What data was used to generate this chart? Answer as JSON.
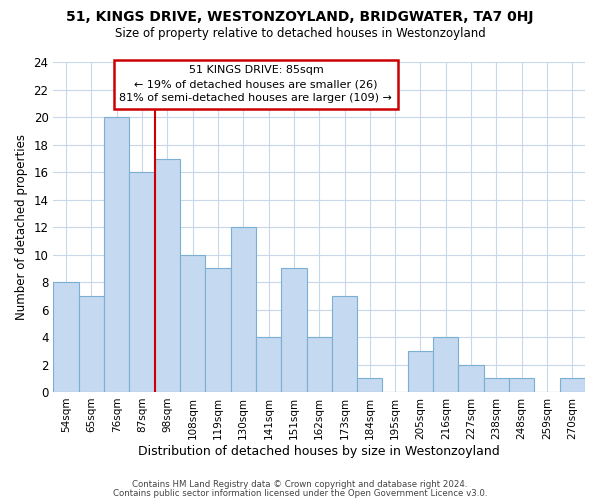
{
  "title": "51, KINGS DRIVE, WESTONZOYLAND, BRIDGWATER, TA7 0HJ",
  "subtitle": "Size of property relative to detached houses in Westonzoyland",
  "xlabel": "Distribution of detached houses by size in Westonzoyland",
  "ylabel": "Number of detached properties",
  "bin_labels": [
    "54sqm",
    "65sqm",
    "76sqm",
    "87sqm",
    "98sqm",
    "108sqm",
    "119sqm",
    "130sqm",
    "141sqm",
    "151sqm",
    "162sqm",
    "173sqm",
    "184sqm",
    "195sqm",
    "205sqm",
    "216sqm",
    "227sqm",
    "238sqm",
    "248sqm",
    "259sqm",
    "270sqm"
  ],
  "bar_heights": [
    8,
    7,
    20,
    16,
    17,
    10,
    9,
    12,
    4,
    9,
    4,
    7,
    1,
    0,
    3,
    4,
    2,
    1,
    1,
    0,
    1
  ],
  "bar_color": "#c5d9f0",
  "bar_edge_color": "#7bafd4",
  "reference_line_index": 3,
  "reference_line_color": "#cc0000",
  "ylim": [
    0,
    24
  ],
  "yticks": [
    0,
    2,
    4,
    6,
    8,
    10,
    12,
    14,
    16,
    18,
    20,
    22,
    24
  ],
  "annotation_title": "51 KINGS DRIVE: 85sqm",
  "annotation_line1": "← 19% of detached houses are smaller (26)",
  "annotation_line2": "81% of semi-detached houses are larger (109) →",
  "annotation_box_color": "#ffffff",
  "annotation_box_edge": "#cc0000",
  "footer_line1": "Contains HM Land Registry data © Crown copyright and database right 2024.",
  "footer_line2": "Contains public sector information licensed under the Open Government Licence v3.0.",
  "background_color": "#ffffff",
  "grid_color": "#c8d8e8"
}
